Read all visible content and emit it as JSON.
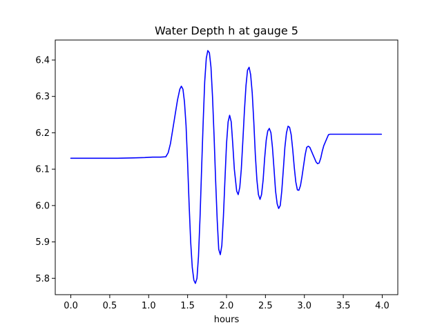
{
  "chart_data": {
    "type": "line",
    "title": "Water Depth h at gauge 5",
    "xlabel": "hours",
    "ylabel": "",
    "xlim": [
      -0.2,
      4.2
    ],
    "ylim": [
      5.755,
      6.455
    ],
    "xticks": [
      0.0,
      0.5,
      1.0,
      1.5,
      2.0,
      2.5,
      3.0,
      3.5,
      4.0
    ],
    "xtick_labels": [
      "0.0",
      "0.5",
      "1.0",
      "1.5",
      "2.0",
      "2.5",
      "3.0",
      "3.5",
      "4.0"
    ],
    "yticks": [
      5.8,
      5.9,
      6.0,
      6.1,
      6.2,
      6.3,
      6.4
    ],
    "ytick_labels": [
      "5.8",
      "5.9",
      "6.0",
      "6.1",
      "6.2",
      "6.3",
      "6.4"
    ],
    "grid": false,
    "line_color": "#0000ff",
    "series": [
      {
        "x": [
          0.0,
          0.3,
          0.6,
          0.8,
          0.95,
          1.05,
          1.15,
          1.22,
          1.25,
          1.28,
          1.31,
          1.34,
          1.37,
          1.4,
          1.42,
          1.44,
          1.46,
          1.48,
          1.5,
          1.52,
          1.54,
          1.56,
          1.58,
          1.6,
          1.62,
          1.64,
          1.66,
          1.68,
          1.7,
          1.72,
          1.74,
          1.76,
          1.78,
          1.8,
          1.82,
          1.84,
          1.86,
          1.88,
          1.9,
          1.92,
          1.94,
          1.96,
          1.98,
          2.0,
          2.02,
          2.04,
          2.06,
          2.08,
          2.1,
          2.13,
          2.15,
          2.17,
          2.19,
          2.21,
          2.23,
          2.25,
          2.27,
          2.29,
          2.31,
          2.33,
          2.35,
          2.37,
          2.39,
          2.41,
          2.43,
          2.45,
          2.47,
          2.49,
          2.51,
          2.53,
          2.55,
          2.57,
          2.59,
          2.61,
          2.63,
          2.65,
          2.67,
          2.69,
          2.71,
          2.73,
          2.75,
          2.77,
          2.79,
          2.81,
          2.83,
          2.85,
          2.87,
          2.89,
          2.91,
          2.93,
          2.95,
          2.97,
          2.99,
          3.01,
          3.03,
          3.05,
          3.07,
          3.09,
          3.11,
          3.13,
          3.15,
          3.17,
          3.19,
          3.21,
          3.23,
          3.25,
          3.27,
          3.29,
          3.31,
          3.33,
          3.36,
          3.39,
          3.42,
          3.45,
          3.48,
          3.51,
          3.54,
          3.57,
          3.6,
          3.63,
          3.66,
          3.69,
          3.72,
          3.75,
          3.78,
          3.81,
          3.84,
          3.87,
          3.9,
          3.93,
          3.96,
          3.99
        ],
        "y": [
          6.13,
          6.13,
          6.13,
          6.131,
          6.132,
          6.133,
          6.133,
          6.134,
          6.145,
          6.17,
          6.21,
          6.25,
          6.29,
          6.32,
          6.328,
          6.32,
          6.285,
          6.22,
          6.12,
          6.0,
          5.9,
          5.83,
          5.795,
          5.786,
          5.8,
          5.86,
          5.97,
          6.1,
          6.23,
          6.34,
          6.405,
          6.426,
          6.42,
          6.38,
          6.3,
          6.19,
          6.07,
          5.96,
          5.88,
          5.865,
          5.89,
          5.97,
          6.07,
          6.17,
          6.23,
          6.248,
          6.23,
          6.17,
          6.1,
          6.04,
          6.03,
          6.05,
          6.1,
          6.18,
          6.26,
          6.33,
          6.372,
          6.38,
          6.36,
          6.31,
          6.23,
          6.14,
          6.07,
          6.03,
          6.017,
          6.03,
          6.07,
          6.13,
          6.18,
          6.205,
          6.212,
          6.2,
          6.16,
          6.1,
          6.04,
          6.005,
          5.992,
          6.0,
          6.04,
          6.1,
          6.16,
          6.2,
          6.218,
          6.215,
          6.195,
          6.155,
          6.105,
          6.065,
          6.043,
          6.042,
          6.055,
          6.08,
          6.11,
          6.14,
          6.16,
          6.163,
          6.16,
          6.15,
          6.14,
          6.13,
          6.12,
          6.115,
          6.117,
          6.13,
          6.15,
          6.165,
          6.175,
          6.185,
          6.195,
          6.196,
          6.196,
          6.196,
          6.196,
          6.196,
          6.196,
          6.196,
          6.196,
          6.196,
          6.196,
          6.196,
          6.196,
          6.196,
          6.196,
          6.196,
          6.196,
          6.196,
          6.196,
          6.196,
          6.196,
          6.196,
          6.196,
          6.196
        ]
      }
    ]
  }
}
